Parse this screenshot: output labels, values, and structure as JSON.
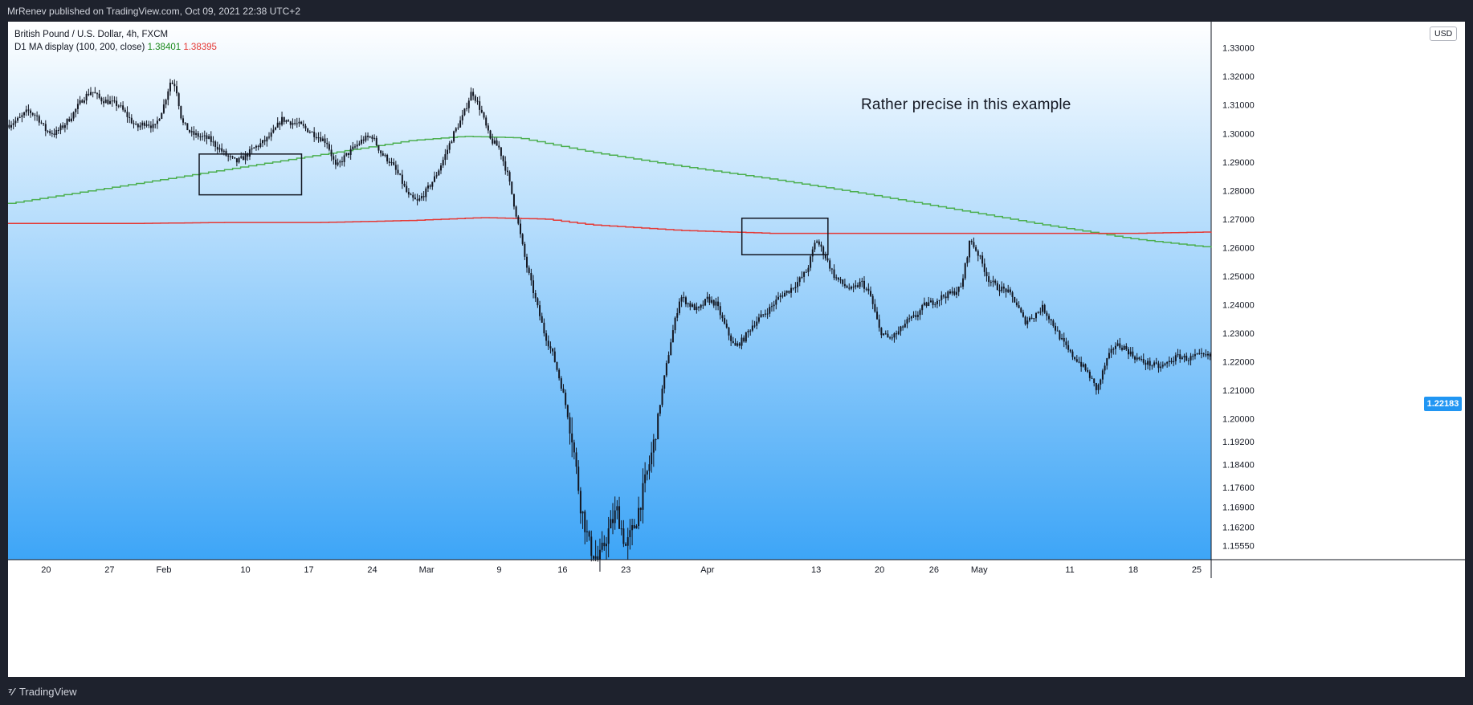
{
  "header": {
    "publisher_line": "MrRenev published on TradingView.com, Oct 09, 2021 22:38 UTC+2"
  },
  "legend": {
    "symbol_line": "British Pound / U.S. Dollar, 4h, FXCM",
    "indicator_name": "D1 MA display (100, 200, close)",
    "ma100_value": "1.38401",
    "ma200_value": "1.38395"
  },
  "annotation": "Rather precise in this example",
  "currency": "USD",
  "last_price_label": "1.22183",
  "footer": {
    "brand": "TradingView"
  },
  "colors": {
    "background_top": "#ffffff",
    "background_bottom": "#3da5f7",
    "ma100_line": "#4caf50",
    "ma200_line": "#e53935",
    "price_tag": "#2196f3",
    "candles": "#131722"
  },
  "chart_data": {
    "type": "candlestick",
    "symbol": "GBPUSD",
    "interval": "4h",
    "ylim": [
      1.1506,
      1.3392
    ],
    "y_ticks": [
      1.33,
      1.32,
      1.31,
      1.3,
      1.29,
      1.28,
      1.27,
      1.26,
      1.25,
      1.24,
      1.23,
      1.22,
      1.21,
      1.2,
      1.192,
      1.184,
      1.176,
      1.169,
      1.162,
      1.1555
    ],
    "y_tick_labels": [
      "1.33000",
      "1.32000",
      "1.31000",
      "1.30000",
      "1.29000",
      "1.28000",
      "1.27000",
      "1.26000",
      "1.25000",
      "1.24000",
      "1.23000",
      "1.22000",
      "1.21000",
      "1.20000",
      "1.19200",
      "1.18400",
      "1.17600",
      "1.16900",
      "1.16200",
      "1.15550"
    ],
    "x_ticks": [
      {
        "label": "20",
        "x": 0.0
      },
      {
        "label": "27",
        "x": 7.0
      },
      {
        "label": "Feb",
        "x": 13.0
      },
      {
        "label": "10",
        "x": 22.0
      },
      {
        "label": "17",
        "x": 29.0
      },
      {
        "label": "24",
        "x": 36.0
      },
      {
        "label": "Mar",
        "x": 42.0
      },
      {
        "label": "9",
        "x": 50.0
      },
      {
        "label": "16",
        "x": 57.0
      },
      {
        "label": "23",
        "x": 64.0
      },
      {
        "label": "Apr",
        "x": 73.0
      },
      {
        "label": "13",
        "x": 85.0
      },
      {
        "label": "20",
        "x": 92.0
      },
      {
        "label": "26",
        "x": 98.0
      },
      {
        "label": "May",
        "x": 103.0
      },
      {
        "label": "11",
        "x": 113.0
      },
      {
        "label": "18",
        "x": 120.0
      },
      {
        "label": "25",
        "x": 127.0
      }
    ],
    "xlim": [
      -4.2,
      128.6
    ],
    "price_path": [
      [
        -4.2,
        1.303
      ],
      [
        -3,
        1.305
      ],
      [
        -2,
        1.308
      ],
      [
        -1,
        1.306
      ],
      [
        0,
        1.301
      ],
      [
        1,
        1.3
      ],
      [
        2,
        1.303
      ],
      [
        3,
        1.307
      ],
      [
        4,
        1.312
      ],
      [
        5,
        1.315
      ],
      [
        6,
        1.312
      ],
      [
        7,
        1.311
      ],
      [
        8,
        1.31
      ],
      [
        9,
        1.306
      ],
      [
        10,
        1.302
      ],
      [
        11,
        1.304
      ],
      [
        12,
        1.302
      ],
      [
        13,
        1.31
      ],
      [
        13.7,
        1.318
      ],
      [
        14.3,
        1.317
      ],
      [
        15,
        1.304
      ],
      [
        16,
        1.3
      ],
      [
        17,
        1.299
      ],
      [
        18,
        1.298
      ],
      [
        19,
        1.295
      ],
      [
        20,
        1.292
      ],
      [
        21,
        1.29
      ],
      [
        22,
        1.292
      ],
      [
        23,
        1.295
      ],
      [
        24,
        1.297
      ],
      [
        25,
        1.3
      ],
      [
        26,
        1.305
      ],
      [
        27,
        1.304
      ],
      [
        28,
        1.303
      ],
      [
        29,
        1.301
      ],
      [
        30,
        1.299
      ],
      [
        31,
        1.297
      ],
      [
        32,
        1.288
      ],
      [
        33,
        1.292
      ],
      [
        34,
        1.295
      ],
      [
        35,
        1.298
      ],
      [
        36,
        1.299
      ],
      [
        37,
        1.293
      ],
      [
        38,
        1.29
      ],
      [
        39,
        1.285
      ],
      [
        40,
        1.278
      ],
      [
        41,
        1.276
      ],
      [
        42,
        1.28
      ],
      [
        43,
        1.285
      ],
      [
        44,
        1.292
      ],
      [
        45,
        1.3
      ],
      [
        46,
        1.306
      ],
      [
        47,
        1.315
      ],
      [
        48,
        1.308
      ],
      [
        49,
        1.298
      ],
      [
        50,
        1.295
      ],
      [
        51,
        1.285
      ],
      [
        52,
        1.27
      ],
      [
        53,
        1.254
      ],
      [
        54,
        1.242
      ],
      [
        55,
        1.23
      ],
      [
        56,
        1.222
      ],
      [
        57,
        1.21
      ],
      [
        58,
        1.195
      ],
      [
        59,
        1.17
      ],
      [
        60,
        1.155
      ],
      [
        61,
        1.15
      ],
      [
        62,
        1.16
      ],
      [
        63,
        1.168
      ],
      [
        64,
        1.155
      ],
      [
        65,
        1.163
      ],
      [
        66,
        1.176
      ],
      [
        67,
        1.19
      ],
      [
        68,
        1.21
      ],
      [
        69,
        1.228
      ],
      [
        70,
        1.243
      ],
      [
        71,
        1.24
      ],
      [
        72,
        1.238
      ],
      [
        73,
        1.242
      ],
      [
        74,
        1.24
      ],
      [
        75,
        1.232
      ],
      [
        76,
        1.225
      ],
      [
        77,
        1.228
      ],
      [
        78,
        1.233
      ],
      [
        79,
        1.236
      ],
      [
        80,
        1.239
      ],
      [
        81,
        1.243
      ],
      [
        82,
        1.245
      ],
      [
        83,
        1.248
      ],
      [
        84,
        1.252
      ],
      [
        85,
        1.263
      ],
      [
        86,
        1.257
      ],
      [
        87,
        1.25
      ],
      [
        88,
        1.247
      ],
      [
        89,
        1.245
      ],
      [
        90,
        1.248
      ],
      [
        91,
        1.243
      ],
      [
        92,
        1.231
      ],
      [
        93,
        1.228
      ],
      [
        94,
        1.23
      ],
      [
        95,
        1.234
      ],
      [
        96,
        1.236
      ],
      [
        97,
        1.24
      ],
      [
        98,
        1.241
      ],
      [
        99,
        1.243
      ],
      [
        100,
        1.244
      ],
      [
        101,
        1.246
      ],
      [
        102,
        1.263
      ],
      [
        103,
        1.257
      ],
      [
        104,
        1.249
      ],
      [
        105,
        1.246
      ],
      [
        106,
        1.245
      ],
      [
        107,
        1.241
      ],
      [
        108,
        1.234
      ],
      [
        109,
        1.236
      ],
      [
        110,
        1.239
      ],
      [
        111,
        1.234
      ],
      [
        112,
        1.228
      ],
      [
        113,
        1.223
      ],
      [
        114,
        1.22
      ],
      [
        115,
        1.216
      ],
      [
        116,
        1.21
      ],
      [
        117,
        1.22
      ],
      [
        118,
        1.226
      ],
      [
        119,
        1.225
      ],
      [
        120,
        1.222
      ],
      [
        121,
        1.22
      ],
      [
        122,
        1.219
      ],
      [
        123,
        1.218
      ],
      [
        124,
        1.22
      ],
      [
        125,
        1.222
      ],
      [
        126,
        1.221
      ],
      [
        127,
        1.222
      ],
      [
        128.6,
        1.2218
      ]
    ],
    "ma_series": [
      {
        "indicator_key": "ma100",
        "x": [
          -4.2,
          10,
          20,
          30,
          40,
          46,
          52,
          60,
          70,
          80,
          90,
          100,
          110,
          120,
          128.6
        ],
        "values": [
          1.2755,
          1.2825,
          1.2875,
          1.2925,
          1.2975,
          1.299,
          1.2985,
          1.2935,
          1.2885,
          1.284,
          1.279,
          1.2735,
          1.268,
          1.263,
          1.26
        ]
      },
      {
        "indicator_key": "ma200",
        "x": [
          -4.2,
          10,
          20,
          30,
          40,
          48,
          55,
          60,
          70,
          80,
          90,
          100,
          110,
          120,
          128.6
        ],
        "values": [
          1.2685,
          1.2685,
          1.2688,
          1.2688,
          1.2695,
          1.2705,
          1.27,
          1.268,
          1.266,
          1.265,
          1.265,
          1.265,
          1.265,
          1.265,
          1.2655
        ]
      }
    ],
    "annotation_boxes": [
      {
        "x": [
          16.9,
          28.2
        ],
        "y": [
          1.2928,
          1.2785
        ]
      },
      {
        "x": [
          76.8,
          86.3
        ],
        "y": [
          1.2703,
          1.2575
        ]
      }
    ],
    "last_price": 1.22183
  }
}
